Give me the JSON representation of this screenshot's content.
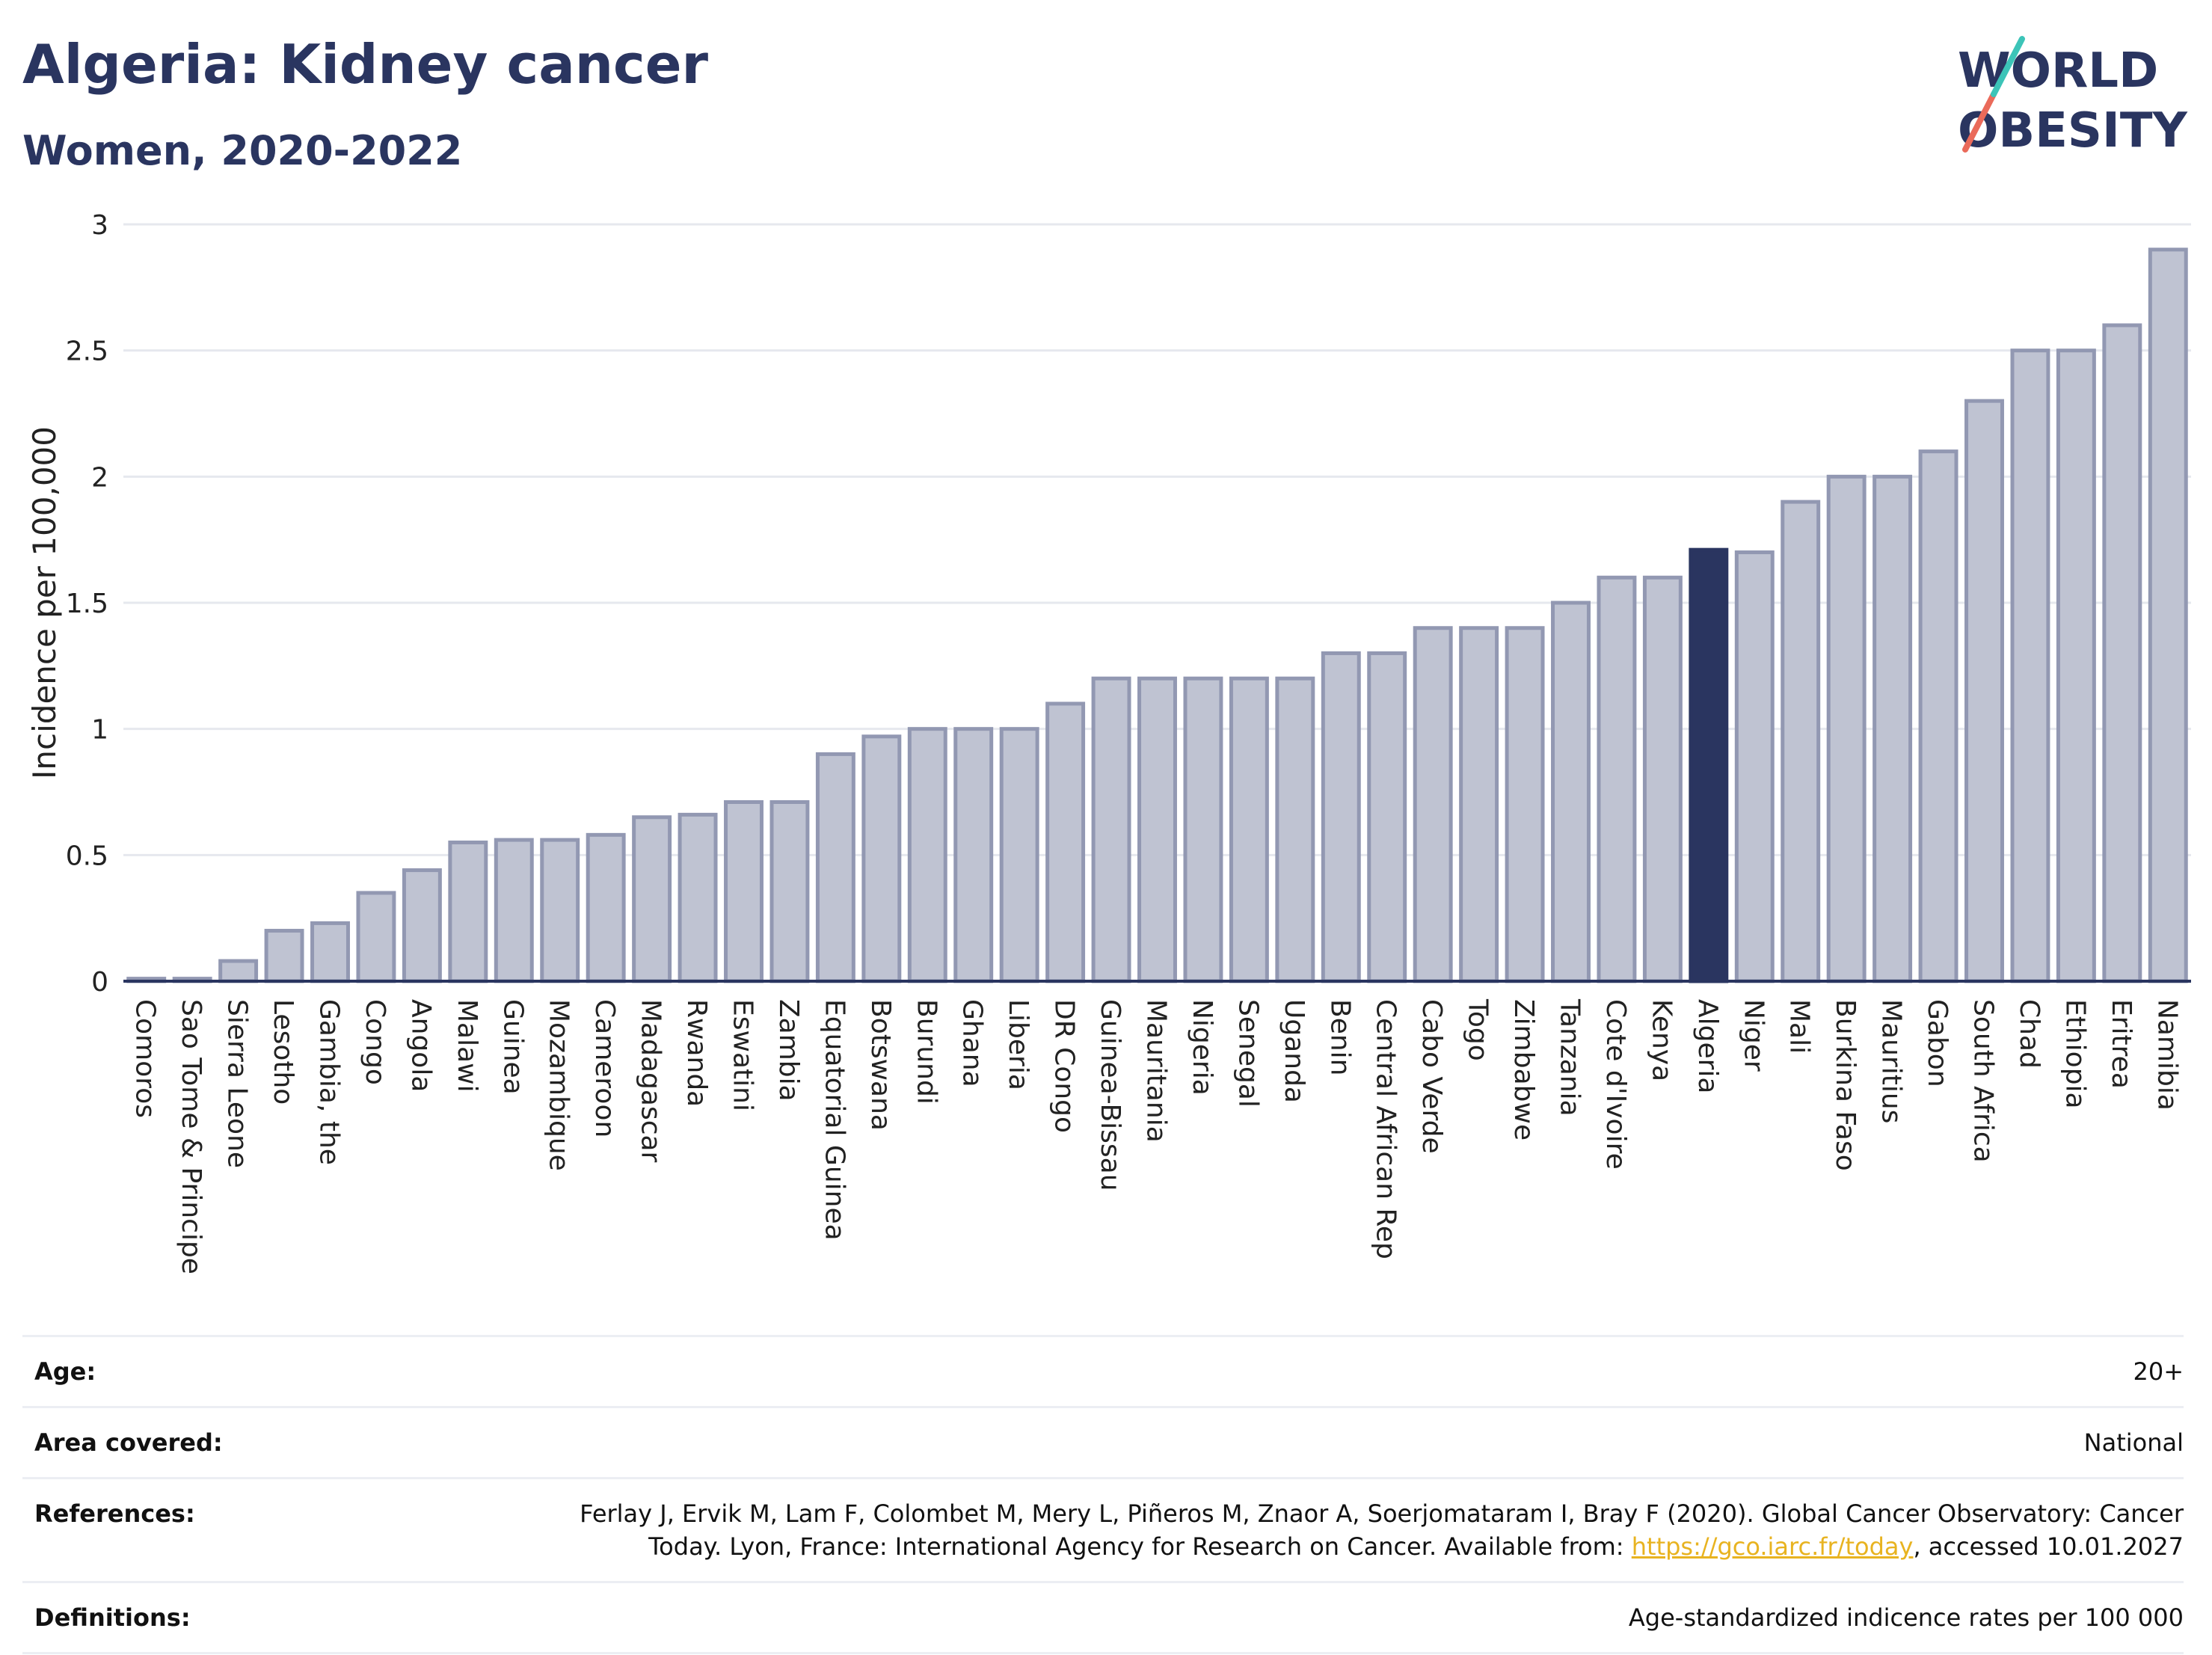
{
  "header": {
    "title": "Algeria: Kidney cancer",
    "subtitle": "Women, 2020-2022"
  },
  "logo": {
    "line1": "WORLD",
    "line2": "OBESITY"
  },
  "chart_data": {
    "type": "bar",
    "ylabel": "Incidence per 100,000",
    "ylim": [
      0,
      3
    ],
    "yticks": [
      "0",
      "0.5",
      "1",
      "1.5",
      "2",
      "2.5",
      "3"
    ],
    "grid": true,
    "highlight": "Algeria",
    "colors": {
      "bar": "#bfc3d2",
      "bar_edge": "#9298b2",
      "highlight": "#2a3560",
      "grid": "#e6e8ee",
      "axis": "#2a3560"
    },
    "categories": [
      "Comoros",
      "Sao Tome & Principe",
      "Sierra Leone",
      "Lesotho",
      "Gambia, the",
      "Congo",
      "Angola",
      "Malawi",
      "Guinea",
      "Mozambique",
      "Cameroon",
      "Madagascar",
      "Rwanda",
      "Eswatini",
      "Zambia",
      "Equatorial Guinea",
      "Botswana",
      "Burundi",
      "Ghana",
      "Liberia",
      "DR Congo",
      "Guinea-Bissau",
      "Mauritania",
      "Nigeria",
      "Senegal",
      "Uganda",
      "Benin",
      "Central African Rep",
      "Cabo Verde",
      "Togo",
      "Zimbabwe",
      "Tanzania",
      "Cote d'Ivoire",
      "Kenya",
      "Algeria",
      "Niger",
      "Mali",
      "Burkina Faso",
      "Mauritius",
      "Gabon",
      "South Africa",
      "Chad",
      "Ethiopia",
      "Eritrea",
      "Namibia"
    ],
    "values": [
      0.01,
      0.01,
      0.08,
      0.2,
      0.23,
      0.35,
      0.44,
      0.55,
      0.56,
      0.56,
      0.58,
      0.65,
      0.66,
      0.71,
      0.71,
      0.9,
      0.97,
      1.0,
      1.0,
      1.0,
      1.1,
      1.2,
      1.2,
      1.2,
      1.2,
      1.2,
      1.3,
      1.3,
      1.4,
      1.4,
      1.4,
      1.5,
      1.6,
      1.6,
      1.71,
      1.7,
      1.9,
      2.0,
      2.0,
      2.1,
      2.3,
      2.5,
      2.5,
      2.6,
      2.9
    ]
  },
  "footer": {
    "age_label": "Age:",
    "age_value": "20+",
    "area_label": "Area covered:",
    "area_value": "National",
    "references_label": "References:",
    "references_text_1": "Ferlay J, Ervik M, Lam F, Colombet M, Mery L, Piñeros M, Znaor A, Soerjomataram I, Bray F (2020). Global Cancer Observatory: Cancer",
    "references_text_2": "Today. Lyon, France: International Agency for Research on Cancer. Available from: ",
    "references_link": "https://gco.iarc.fr/today",
    "references_text_3": ", accessed 10.01.2027",
    "definitions_label": "Definitions:",
    "definitions_value": "Age-standardized indicence rates per 100 000"
  }
}
